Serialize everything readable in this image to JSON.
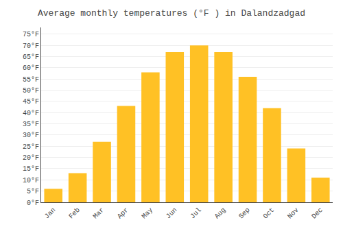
{
  "chart_data": {
    "type": "bar",
    "title": "Average monthly temperatures (°F ) in Dalandzadgad",
    "categories": [
      "Jan",
      "Feb",
      "Mar",
      "Apr",
      "May",
      "Jun",
      "Jul",
      "Aug",
      "Sep",
      "Oct",
      "Nov",
      "Dec"
    ],
    "values": [
      6,
      13,
      27,
      43,
      58,
      67,
      70,
      67,
      56,
      42,
      24,
      11
    ],
    "color": "#FFC125",
    "ylim": [
      0,
      78
    ],
    "yticks": [
      {
        "value": 0,
        "label": "0°F"
      },
      {
        "value": 5,
        "label": "5°F"
      },
      {
        "value": 10,
        "label": "10°F"
      },
      {
        "value": 15,
        "label": "15°F"
      },
      {
        "value": 20,
        "label": "20°F"
      },
      {
        "value": 25,
        "label": "25°F"
      },
      {
        "value": 30,
        "label": "30°F"
      },
      {
        "value": 35,
        "label": "35°F"
      },
      {
        "value": 40,
        "label": "40°F"
      },
      {
        "value": 45,
        "label": "45°F"
      },
      {
        "value": 50,
        "label": "50°F"
      },
      {
        "value": 55,
        "label": "55°F"
      },
      {
        "value": 60,
        "label": "60°F"
      },
      {
        "value": 65,
        "label": "65°F"
      },
      {
        "value": 70,
        "label": "70°F"
      },
      {
        "value": 75,
        "label": "75°F"
      }
    ],
    "grid": true
  }
}
